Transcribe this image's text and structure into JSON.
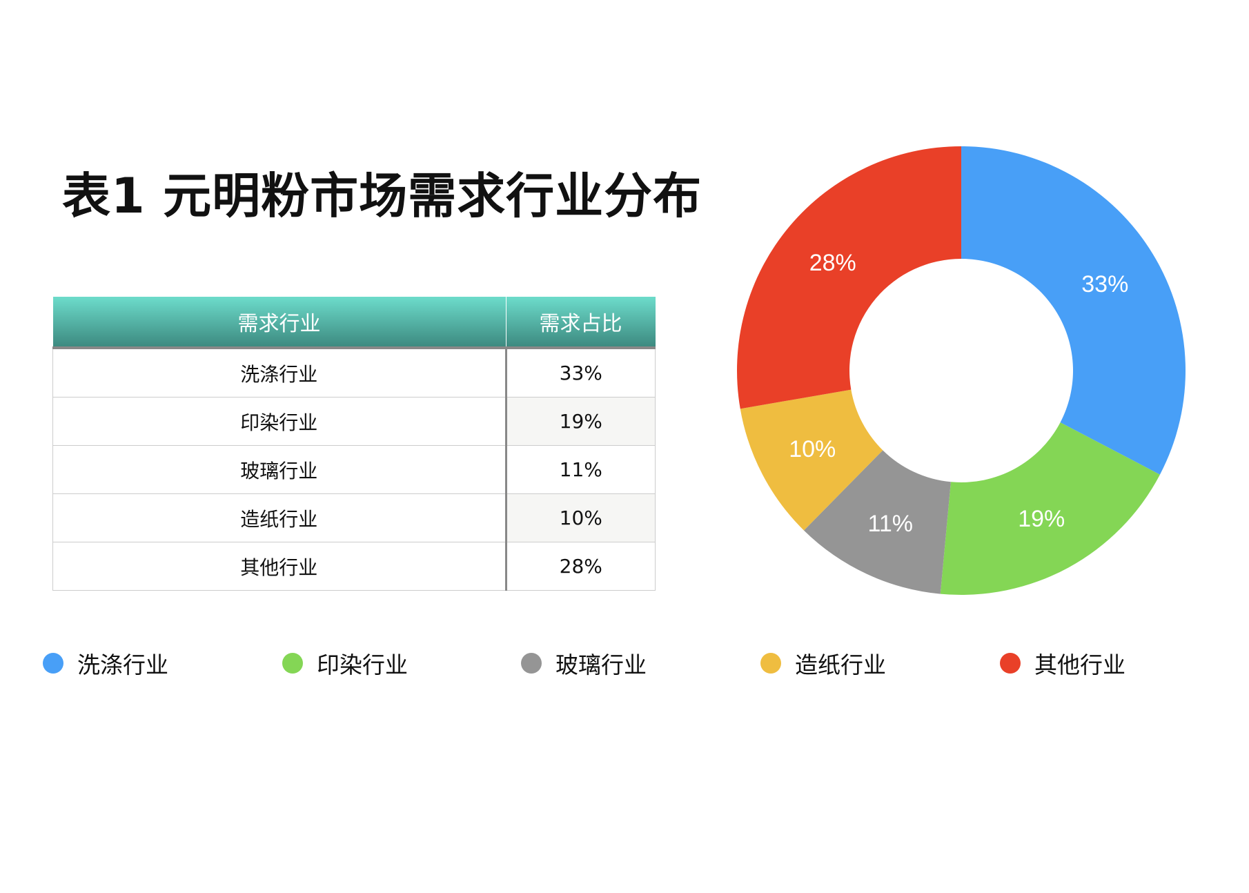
{
  "title": "表1 元明粉市场需求行业分布",
  "table": {
    "headers": [
      "需求行业",
      "需求占比"
    ],
    "rows": [
      [
        "洗涤行业",
        "33%"
      ],
      [
        "印染行业",
        "19%"
      ],
      [
        "玻璃行业",
        "11%"
      ],
      [
        "造纸行业",
        "10%"
      ],
      [
        "其他行业",
        "28%"
      ]
    ]
  },
  "chart_data": {
    "type": "pie",
    "variant": "donut",
    "start": "top, clockwise",
    "categories": [
      "洗涤行业",
      "印染行业",
      "玻璃行业",
      "造纸行业",
      "其他行业"
    ],
    "values": [
      33,
      19,
      11,
      10,
      28
    ],
    "labels": [
      "33%",
      "19%",
      "11%",
      "10%",
      "28%"
    ],
    "colors": [
      "#489ff7",
      "#84d655",
      "#959595",
      "#efbd40",
      "#e94028"
    ],
    "legend_position": "bottom"
  }
}
